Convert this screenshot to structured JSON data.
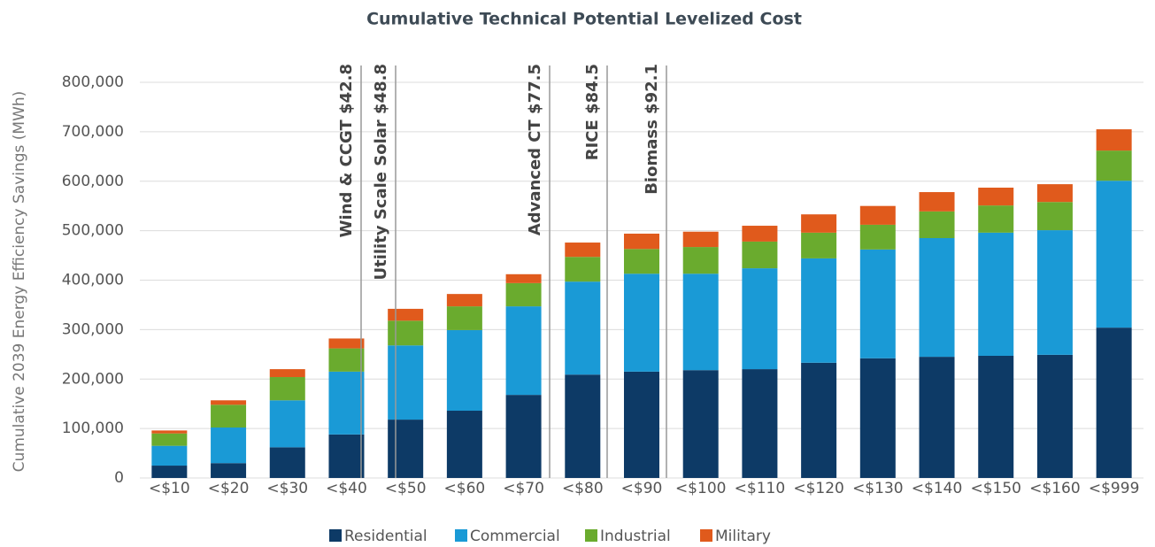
{
  "chart_data": {
    "type": "stacked_bar",
    "title": "Cumulative Technical Potential Levelized Cost",
    "y_label": "Cumulative 2039 Energy Efficiency Savings (MWh)",
    "categories": [
      "<$10",
      "<$20",
      "<$30",
      "<$40",
      "<$50",
      "<$60",
      "<$70",
      "<$80",
      "<$90",
      "<$100",
      "<$110",
      "<$120",
      "<$130",
      "<$140",
      "<$150",
      "<$160",
      "<$999"
    ],
    "series": [
      {
        "name": "Residential",
        "color": "#0d3a66",
        "values": [
          25000,
          30000,
          62000,
          88000,
          118000,
          136000,
          168000,
          209000,
          215000,
          218000,
          220000,
          233000,
          242000,
          245000,
          247000,
          249000,
          304000
        ]
      },
      {
        "name": "Commercial",
        "color": "#1a9ad6",
        "values": [
          40000,
          72000,
          95000,
          127000,
          150000,
          163000,
          179000,
          188000,
          198000,
          195000,
          204000,
          211000,
          220000,
          240000,
          249000,
          252000,
          297000
        ]
      },
      {
        "name": "Industrial",
        "color": "#6aab2e",
        "values": [
          25000,
          46000,
          47000,
          47000,
          50000,
          48000,
          47000,
          50000,
          50000,
          54000,
          54000,
          52000,
          50000,
          54000,
          55000,
          57000,
          61000
        ]
      },
      {
        "name": "Military",
        "color": "#e05a1c",
        "values": [
          6000,
          9000,
          16000,
          20000,
          24000,
          25000,
          18000,
          29000,
          31000,
          31000,
          32000,
          37000,
          38000,
          39000,
          36000,
          36000,
          43000
        ]
      }
    ],
    "annotations": [
      "Wind & CCGT $42.8",
      "Utility Scale Solar $48.8",
      "Advanced CT $77.5",
      "RICE $84.5",
      "Biomass $92.1"
    ],
    "ylim": [
      0,
      800000
    ],
    "yticks": [
      0,
      {
        "value": 100000,
        "label": "100,000"
      },
      {
        "value": 200000,
        "label": "200,000"
      },
      {
        "value": 300000,
        "label": "300,000"
      },
      {
        "value": 400000,
        "label": "400,000"
      },
      {
        "value": 500000,
        "label": "500,000"
      },
      {
        "value": 600000,
        "label": "600,000"
      },
      {
        "value": 700000,
        "label": "700,000"
      },
      {
        "value": 800000,
        "label": "800,000"
      }
    ],
    "grid": true,
    "legend": "bottom"
  }
}
